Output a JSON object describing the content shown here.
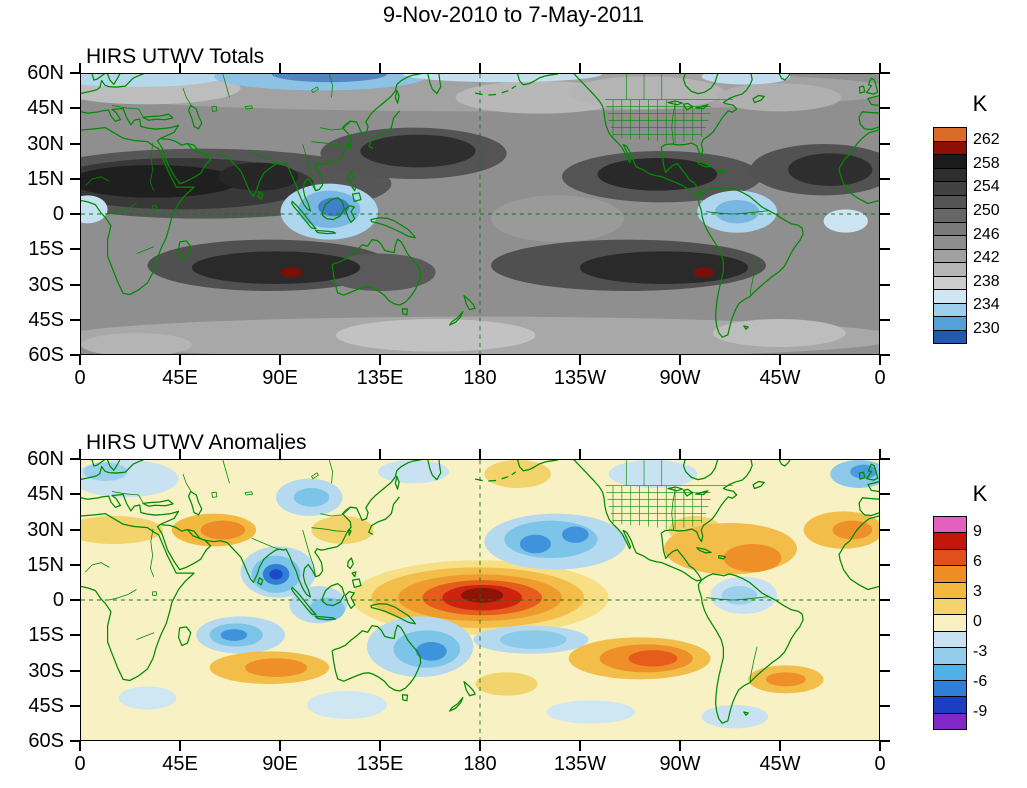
{
  "title": "9-Nov-2010 to 7-May-2011",
  "chart_data": [
    {
      "type": "heatmap",
      "title": "HIRS UTWV Totals",
      "units": "K",
      "lat_ticks": [
        "60N",
        "45N",
        "30N",
        "15N",
        "0",
        "15S",
        "30S",
        "45S",
        "60S"
      ],
      "lon_ticks": [
        "0",
        "45E",
        "90E",
        "135E",
        "180",
        "135W",
        "90W",
        "45W",
        "0"
      ],
      "colorbar": {
        "label": "K",
        "tick_labels": [
          "262",
          "258",
          "254",
          "250",
          "246",
          "242",
          "238",
          "234",
          "230"
        ],
        "colors": [
          "#d96a28",
          "#8d1007",
          "#1b1b1b",
          "#2e2e2e",
          "#414141",
          "#545454",
          "#676767",
          "#7a7a7a",
          "#8d8d8d",
          "#a0a0a0",
          "#b6b6b6",
          "#cccccc",
          "#cfe6f3",
          "#9ccfec",
          "#56a0d8",
          "#2458b0"
        ]
      },
      "base_color": "#8f8f8f",
      "features": [
        [
          180,
          53,
          190,
          9,
          "#a2a2a2"
        ],
        [
          30,
          54,
          42,
          7,
          "#bdbdbd"
        ],
        [
          207,
          50,
          38,
          7,
          "#b8b8b8"
        ],
        [
          255,
          52,
          35,
          7,
          "#b4b4b4"
        ],
        [
          315,
          50,
          28,
          6,
          "#b0b0b0"
        ],
        [
          180,
          -53,
          190,
          9,
          "#a8a8a8"
        ],
        [
          160,
          -52,
          45,
          7,
          "#c2c2c2"
        ],
        [
          315,
          -51,
          30,
          6,
          "#bdbdbd"
        ],
        [
          25,
          -56,
          25,
          5,
          "#b4b4b4"
        ],
        [
          215,
          -2,
          30,
          10,
          "#9a9a9a"
        ],
        [
          55,
          13,
          85,
          15,
          "#565656"
        ],
        [
          45,
          13,
          60,
          11,
          "#383838"
        ],
        [
          33,
          14,
          38,
          7,
          "#1f1f1f"
        ],
        [
          80,
          16,
          18,
          6,
          "#262626"
        ],
        [
          150,
          26,
          42,
          11,
          "#545454"
        ],
        [
          152,
          27,
          26,
          7,
          "#2e2e2e"
        ],
        [
          262,
          16,
          45,
          11,
          "#545454"
        ],
        [
          260,
          17,
          27,
          7,
          "#292929"
        ],
        [
          335,
          19,
          33,
          11,
          "#525252"
        ],
        [
          338,
          19,
          19,
          7,
          "#2e2e2e"
        ],
        [
          85,
          -22,
          55,
          11,
          "#505050"
        ],
        [
          135,
          -25,
          25,
          8,
          "#5a5a5a"
        ],
        [
          88,
          -23,
          38,
          7,
          "#2a2a2a"
        ],
        [
          95,
          -25,
          5,
          2.2,
          "#7a0f07"
        ],
        [
          247,
          -22,
          62,
          11,
          "#505050"
        ],
        [
          263,
          -23,
          38,
          7,
          "#2a2a2a"
        ],
        [
          281,
          -25,
          4.5,
          2.2,
          "#7a0f07"
        ],
        [
          25,
          59,
          40,
          4.5,
          "#b5d8ec"
        ],
        [
          108,
          59,
          48,
          6,
          "#8cc2e4"
        ],
        [
          112,
          60,
          26,
          3.5,
          "#4f86c6"
        ],
        [
          190,
          60,
          45,
          3.5,
          "#c5dfee"
        ],
        [
          300,
          59,
          20,
          3.5,
          "#c0dcee"
        ],
        [
          112,
          1,
          22,
          12,
          "#aed6ee"
        ],
        [
          112,
          2,
          14,
          8,
          "#79b6e2"
        ],
        [
          114,
          3,
          7,
          4,
          "#4080c8"
        ],
        [
          296,
          1,
          18,
          9,
          "#aed6ee"
        ],
        [
          296,
          1,
          10,
          5,
          "#79b6e2"
        ],
        [
          3,
          2,
          9,
          6,
          "#c6e2f2"
        ],
        [
          345,
          -3,
          10,
          5,
          "#cde5f2"
        ]
      ]
    },
    {
      "type": "heatmap",
      "title": "HIRS UTWV Anomalies",
      "units": "K",
      "lat_ticks": [
        "60N",
        "45N",
        "30N",
        "15N",
        "0",
        "15S",
        "30S",
        "45S",
        "60S"
      ],
      "lon_ticks": [
        "0",
        "45E",
        "90E",
        "135E",
        "180",
        "135W",
        "90W",
        "45W",
        "0"
      ],
      "colorbar": {
        "label": "K",
        "tick_labels": [
          "9",
          "6",
          "3",
          "0",
          "-3",
          "-6",
          "-9"
        ],
        "colors": [
          "#e55fbe",
          "#c3170b",
          "#e14f1b",
          "#ef8c24",
          "#f3b93f",
          "#f2d36c",
          "#f8f0c0",
          "#c8e2f2",
          "#94cdec",
          "#52b1e4",
          "#2f7fd6",
          "#1b3fc0",
          "#8227c8"
        ]
      },
      "base_color": "#f7f1c3",
      "features": [
        [
          20,
          52,
          24,
          8,
          "#c8e2f2"
        ],
        [
          11,
          55,
          10,
          4,
          "#9cd0ec"
        ],
        [
          103,
          44,
          15,
          8,
          "#b5d9ee"
        ],
        [
          104,
          44,
          8,
          4,
          "#7cc4e8"
        ],
        [
          150,
          55,
          16,
          5,
          "#c8e2f2"
        ],
        [
          197,
          54,
          15,
          6,
          "#f2d36c"
        ],
        [
          258,
          54,
          20,
          6,
          "#c8e2f2"
        ],
        [
          351,
          54,
          13,
          6,
          "#8cc8ea"
        ],
        [
          353,
          55,
          6,
          3,
          "#4a9ade"
        ],
        [
          15,
          30,
          22,
          6,
          "#f2d36c"
        ],
        [
          60,
          30,
          19,
          7,
          "#f3b93f"
        ],
        [
          64,
          30,
          10,
          4,
          "#ec8b28"
        ],
        [
          118,
          30,
          14,
          6,
          "#f2d36c"
        ],
        [
          277,
          30,
          12,
          6,
          "#f2d36c"
        ],
        [
          293,
          22,
          30,
          11,
          "#f3bd49"
        ],
        [
          303,
          18,
          13,
          6,
          "#ee9027"
        ],
        [
          344,
          30,
          18,
          8,
          "#f3bd49"
        ],
        [
          348,
          30,
          9,
          4,
          "#ee9027"
        ],
        [
          89,
          12,
          17,
          11,
          "#b5d9ee"
        ],
        [
          88,
          11,
          11,
          8,
          "#7cc4e8"
        ],
        [
          88,
          11,
          6,
          4.5,
          "#2f7fd6"
        ],
        [
          88,
          11,
          3,
          2.2,
          "#1b49c8"
        ],
        [
          107,
          -2,
          13,
          8,
          "#b5d9ee"
        ],
        [
          111,
          -4,
          8,
          5,
          "#7cc4e8"
        ],
        [
          72,
          -15,
          20,
          8,
          "#b5d9ee"
        ],
        [
          70,
          -15,
          12,
          5,
          "#7cc4e8"
        ],
        [
          69,
          -15,
          6,
          2.5,
          "#3f93dc"
        ],
        [
          85,
          -29,
          27,
          7,
          "#f3bd49"
        ],
        [
          88,
          -29,
          14,
          4,
          "#ee9027"
        ],
        [
          180,
          1,
          58,
          16,
          "#f7df85"
        ],
        [
          179,
          1,
          48,
          13,
          "#f3bd49"
        ],
        [
          180,
          1,
          37,
          10,
          "#ef9a2d"
        ],
        [
          181,
          1,
          27,
          7.5,
          "#e65c1c"
        ],
        [
          181,
          1,
          18,
          5.5,
          "#cd2410"
        ],
        [
          181,
          2,
          9.5,
          3.2,
          "#8f1307"
        ],
        [
          153,
          -20,
          24,
          13,
          "#b5d9ee"
        ],
        [
          156,
          -21,
          15,
          8,
          "#7cc4e8"
        ],
        [
          158,
          -22,
          7,
          4,
          "#3f93dc"
        ],
        [
          203,
          -17,
          26,
          6,
          "#b5d9ee"
        ],
        [
          204,
          -17,
          15,
          4,
          "#8ccaea"
        ],
        [
          214,
          25,
          32,
          12,
          "#b5d9ee"
        ],
        [
          212,
          26,
          21,
          8,
          "#7cc4e8"
        ],
        [
          205,
          24,
          7,
          4,
          "#3f93dc"
        ],
        [
          223,
          28,
          6,
          3.5,
          "#3f93dc"
        ],
        [
          252,
          -25,
          32,
          9,
          "#f3bd49"
        ],
        [
          255,
          -25,
          21,
          6,
          "#ee9027"
        ],
        [
          258,
          -25,
          11,
          3.5,
          "#e65c1c"
        ],
        [
          299,
          2,
          15,
          8,
          "#c8e2f2"
        ],
        [
          297,
          2,
          8,
          4,
          "#9cd0ec"
        ],
        [
          318,
          -34,
          17,
          6,
          "#f3bd49"
        ],
        [
          318,
          -34,
          9,
          3,
          "#ee9027"
        ],
        [
          192,
          -36,
          14,
          5,
          "#f2d36c"
        ],
        [
          120,
          -45,
          18,
          6,
          "#cfe6f3"
        ],
        [
          230,
          -48,
          20,
          5,
          "#cfe6f3"
        ],
        [
          30,
          -42,
          13,
          5,
          "#cfe6f3"
        ],
        [
          295,
          -50,
          15,
          5,
          "#c8e2f2"
        ]
      ]
    }
  ]
}
